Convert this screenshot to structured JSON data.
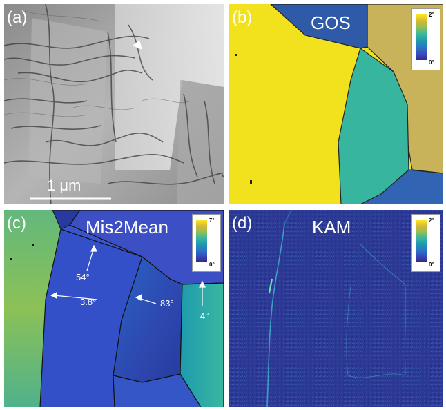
{
  "panels": {
    "a": {
      "label": "(a)",
      "scale_bar": "1 μm"
    },
    "b": {
      "label": "(b)",
      "title": "GOS",
      "colorbar": {
        "max": "2°",
        "min": "0°"
      }
    },
    "c": {
      "label": "(c)",
      "title": "Mis2Mean",
      "colorbar": {
        "max": "7°",
        "min": "0°"
      },
      "annotations": {
        "a54": "54°",
        "a38": "3.8°",
        "a83": "83°",
        "a4": "4°"
      }
    },
    "d": {
      "label": "(d)",
      "title": "KAM",
      "colorbar": {
        "max": "2°",
        "min": "0°"
      }
    }
  },
  "colors": {
    "gos_yellow": "#f2e21e",
    "gos_teal": "#38b59e",
    "gos_tan": "#c9b35a",
    "gos_blue": "#3264b4",
    "mis_blue": "#3a55c9",
    "kam_blue": "#2c3a96"
  }
}
